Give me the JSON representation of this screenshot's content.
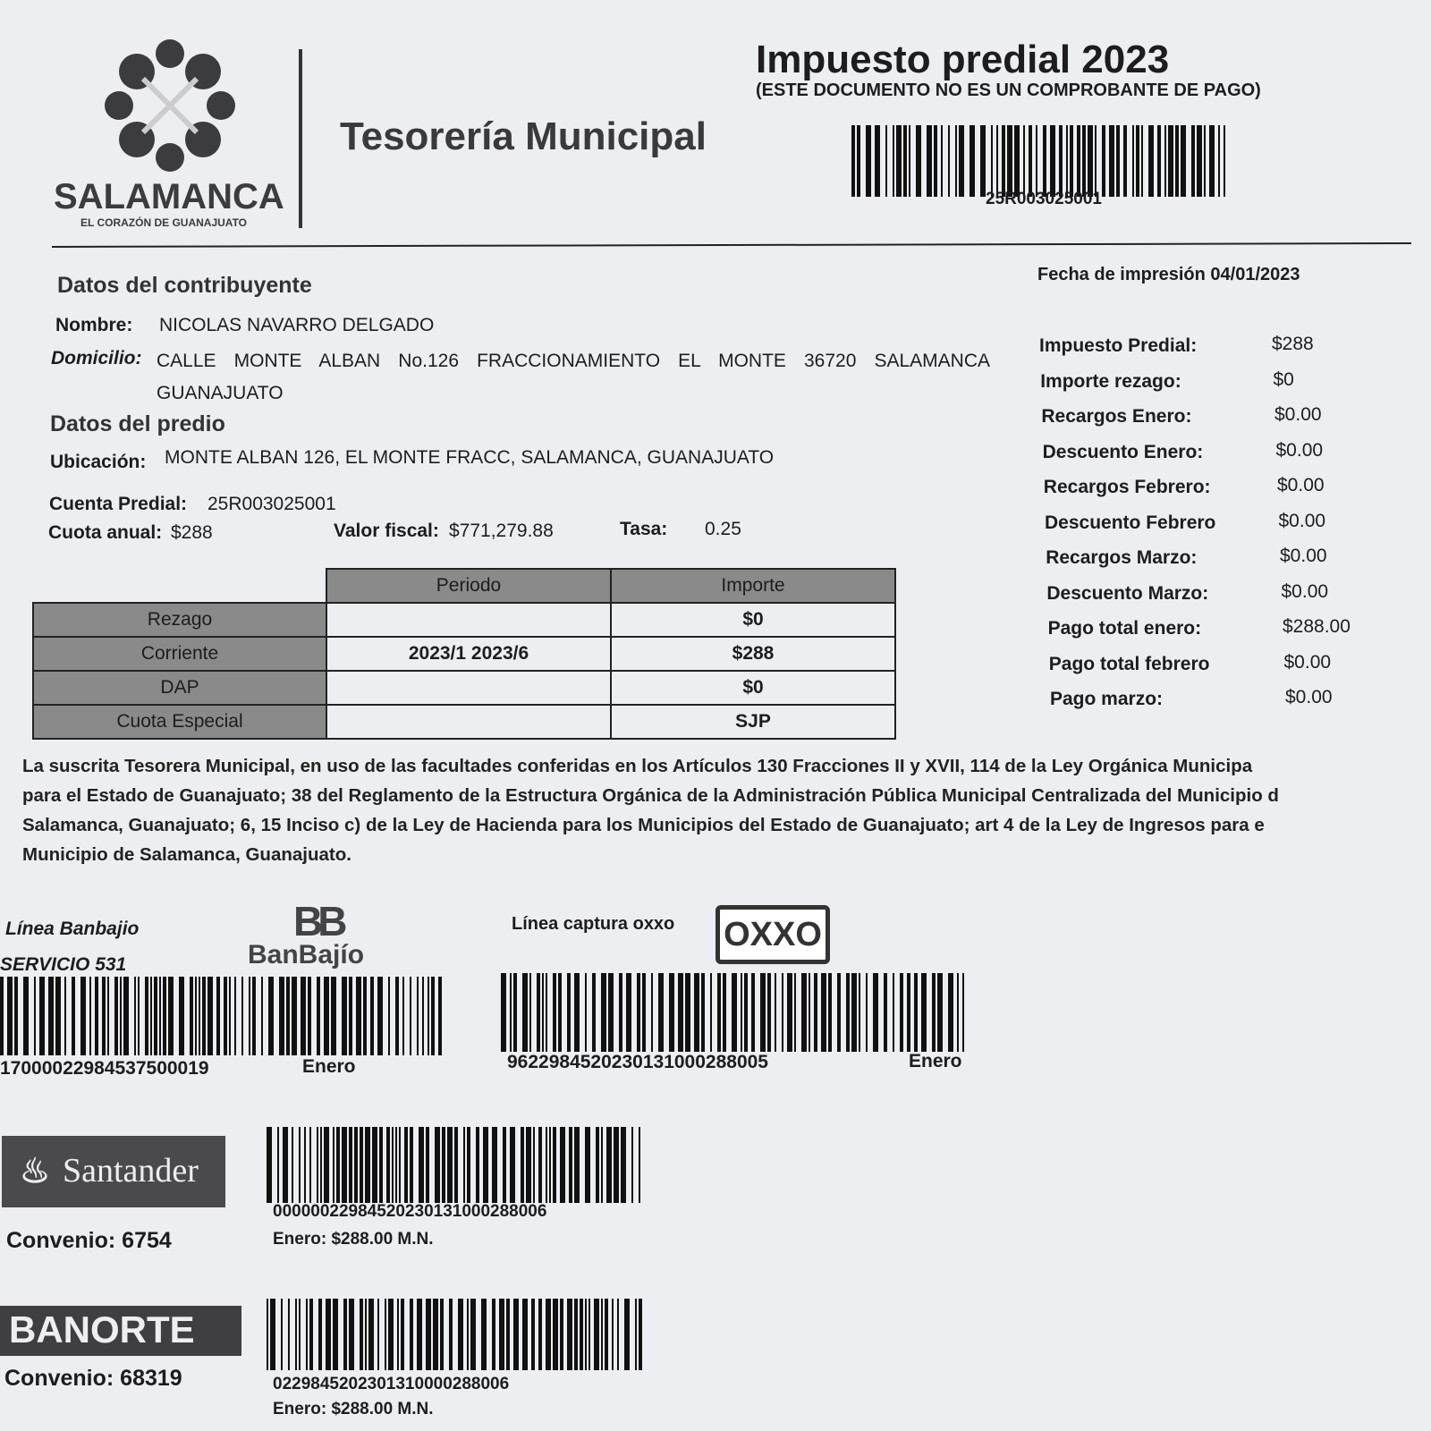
{
  "header": {
    "logo_name": "SALAMANCA",
    "logo_tagline": "EL CORAZÓN DE GUANAJUATO",
    "office": "Tesorería Municipal",
    "title": "Impuesto predial 2023",
    "subtitle": "(ESTE DOCUMENTO NO ES UN COMPROBANTE DE PAGO)",
    "barcode_number": "25R003025001"
  },
  "print_date": {
    "label": "Fecha de impresión",
    "value": "04/01/2023"
  },
  "taxpayer": {
    "heading": "Datos del contribuyente",
    "name_label": "Nombre:",
    "name": "NICOLAS NAVARRO DELGADO",
    "address_label": "Domicilio:",
    "address": "CALLE MONTE ALBAN No.126 FRACCIONAMIENTO EL MONTE 36720 SALAMANCA GUANAJUATO"
  },
  "property": {
    "heading": "Datos del predio",
    "location_label": "Ubicación:",
    "location": "MONTE ALBAN 126, EL MONTE FRACC, SALAMANCA, GUANAJUATO",
    "account_label": "Cuenta Predial:",
    "account": "25R003025001",
    "annual_fee_label": "Cuota anual:",
    "annual_fee": "$288",
    "fiscal_value_label": "Valor fiscal:",
    "fiscal_value": "$771,279.88",
    "rate_label": "Tasa:",
    "rate": "0.25"
  },
  "summary": [
    [
      "Impuesto Predial:",
      "$288"
    ],
    [
      "Importe rezago:",
      "$0"
    ],
    [
      "Recargos Enero:",
      "$0.00"
    ],
    [
      "Descuento Enero:",
      "$0.00"
    ],
    [
      "Recargos Febrero:",
      "$0.00"
    ],
    [
      "Descuento Febrero",
      "$0.00"
    ],
    [
      "Recargos Marzo:",
      "$0.00"
    ],
    [
      "Descuento Marzo:",
      "$0.00"
    ],
    [
      "Pago total enero:",
      "$288.00"
    ],
    [
      "Pago total febrero",
      "$0.00"
    ],
    [
      "Pago marzo:",
      "$0.00"
    ]
  ],
  "table": {
    "headers": [
      "Periodo",
      "Importe"
    ],
    "rows": [
      [
        "Rezago",
        null,
        "$0"
      ],
      [
        "Corriente",
        "2023/1 2023/6",
        "$288"
      ],
      [
        "DAP",
        null,
        "$0"
      ],
      [
        "Cuota Especial",
        null,
        "SJP"
      ]
    ]
  },
  "legal_lines": [
    "La suscrita Tesorera Municipal, en uso de las facultades conferidas en los Artículos 130 Fracciones II y XVII, 114 de la Ley Orgánica Municipa",
    "para el Estado de Guanajuato; 38 del Reglamento de la Estructura Orgánica de la Administración Pública Municipal Centralizada del Municipio d",
    "Salamanca, Guanajuato; 6, 15 Inciso c) de la Ley de Hacienda para los Municipios del Estado de Guanajuato; art 4 de la Ley de Ingresos para e",
    "Municipio de Salamanca, Guanajuato."
  ],
  "banbajio": {
    "label": "Línea Banbajio",
    "service": "SERVICIO 531",
    "logo": "BanBajío",
    "number": "17000022984537500019",
    "month": "Enero"
  },
  "oxxo": {
    "label": "Línea captura oxxo",
    "logo": "OXXO",
    "number": "9622984520230131000288005",
    "month": "Enero"
  },
  "santander": {
    "logo": "Santander",
    "convenio": "Convenio: 6754",
    "number": "00000022984520230131000288006",
    "amount": "Enero: $288.00 M.N."
  },
  "banorte": {
    "logo": "BANORTE",
    "convenio": "Convenio: 68319",
    "number": "0229845202301310000288006",
    "amount": "Enero: $288.00 M.N."
  }
}
